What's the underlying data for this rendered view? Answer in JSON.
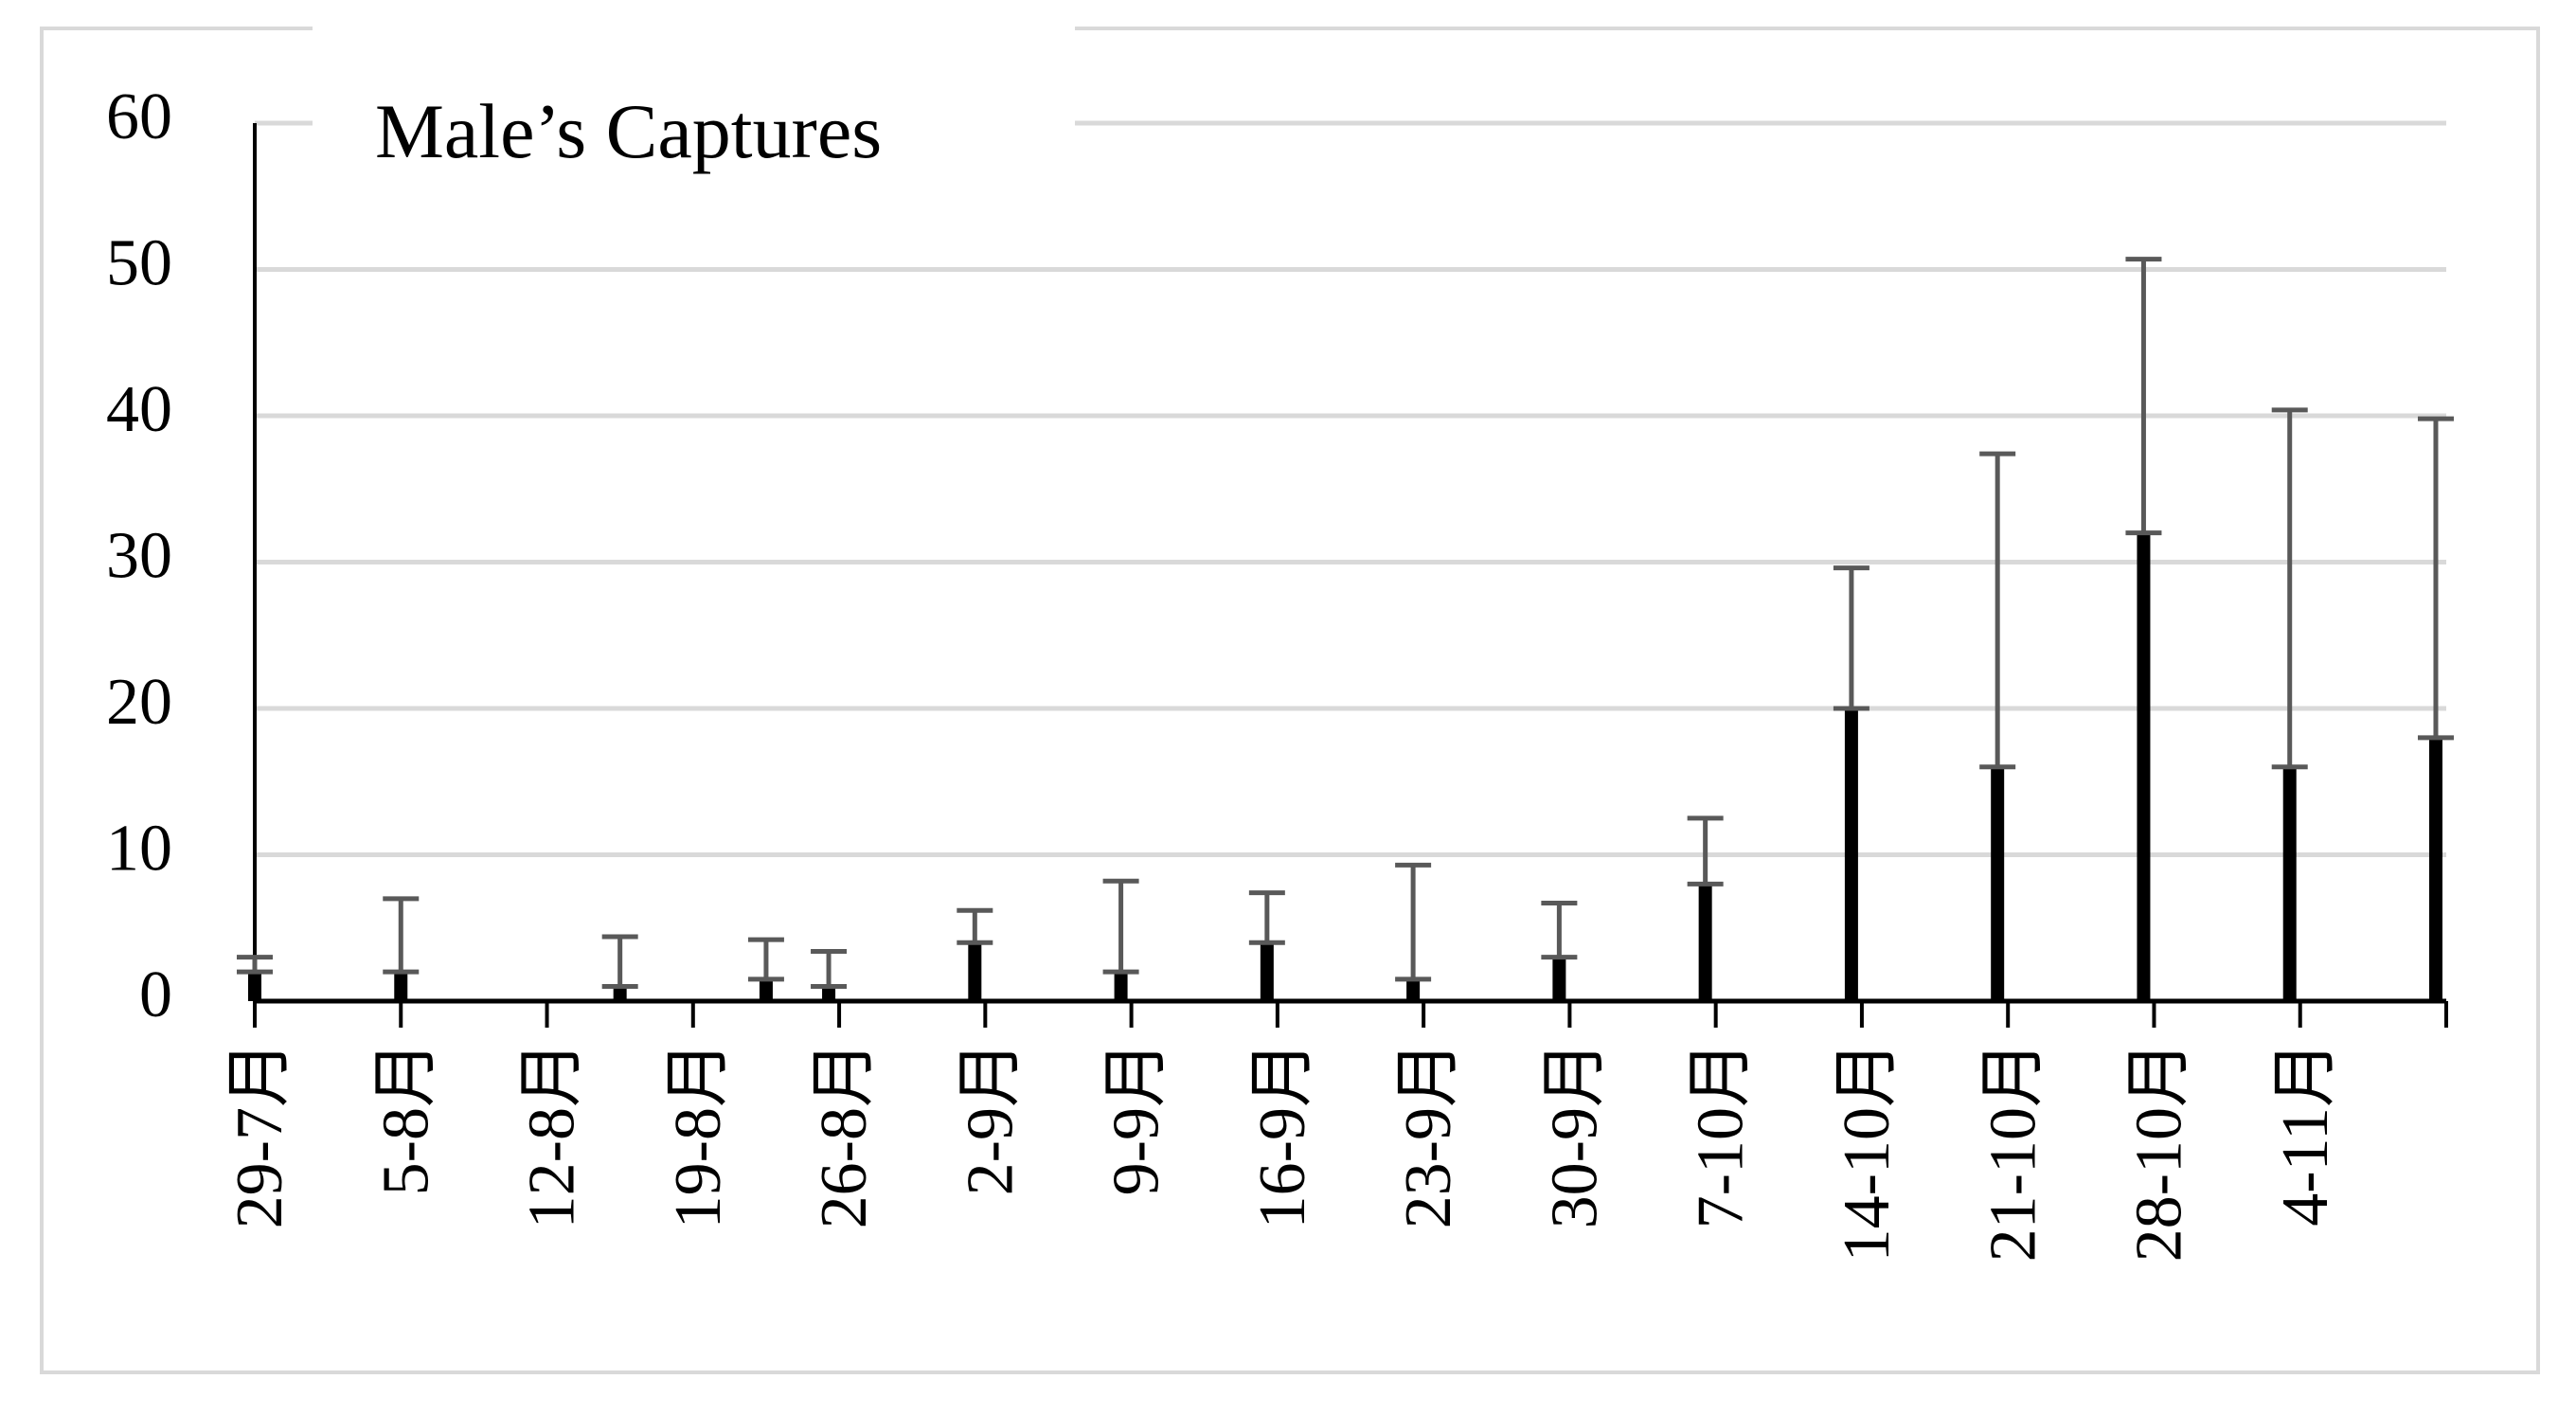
{
  "chart_data": {
    "type": "bar",
    "title": "Male’s Captures",
    "x": [
      0,
      7,
      17.5,
      24.5,
      27.5,
      34.5,
      41.5,
      48.5,
      55.5,
      62.5,
      69.5,
      76.5,
      83.5,
      90.5,
      97.5,
      104.5
    ],
    "values": [
      2,
      2,
      1,
      1.5,
      1,
      4,
      2,
      4,
      1.5,
      3,
      8,
      20,
      16,
      32,
      16,
      18
    ],
    "errors": [
      1,
      5,
      3.4,
      2.7,
      2.4,
      2.2,
      6.2,
      3.4,
      7.8,
      3.7,
      4.5,
      9.6,
      21.4,
      18.7,
      24.4,
      21.8
    ],
    "color": "#000000",
    "error_color": "#595959",
    "xlim": [
      0,
      105
    ],
    "xticks": [
      {
        "value": 0,
        "label": "29-7月"
      },
      {
        "value": 7,
        "label": "5-8月"
      },
      {
        "value": 14,
        "label": "12-8月"
      },
      {
        "value": 21,
        "label": "19-8月"
      },
      {
        "value": 28,
        "label": "26-8月"
      },
      {
        "value": 35,
        "label": "2-9月"
      },
      {
        "value": 42,
        "label": "9-9月"
      },
      {
        "value": 49,
        "label": "16-9月"
      },
      {
        "value": 56,
        "label": "23-9月"
      },
      {
        "value": 63,
        "label": "30-9月"
      },
      {
        "value": 70,
        "label": "7-10月"
      },
      {
        "value": 77,
        "label": "14-10月"
      },
      {
        "value": 84,
        "label": "21-10月"
      },
      {
        "value": 91,
        "label": "28-10月"
      },
      {
        "value": 98,
        "label": "4-11月"
      }
    ],
    "ylim": [
      0,
      60
    ],
    "yticks": [
      0,
      10,
      20,
      30,
      40,
      50,
      60
    ],
    "grid": true
  }
}
